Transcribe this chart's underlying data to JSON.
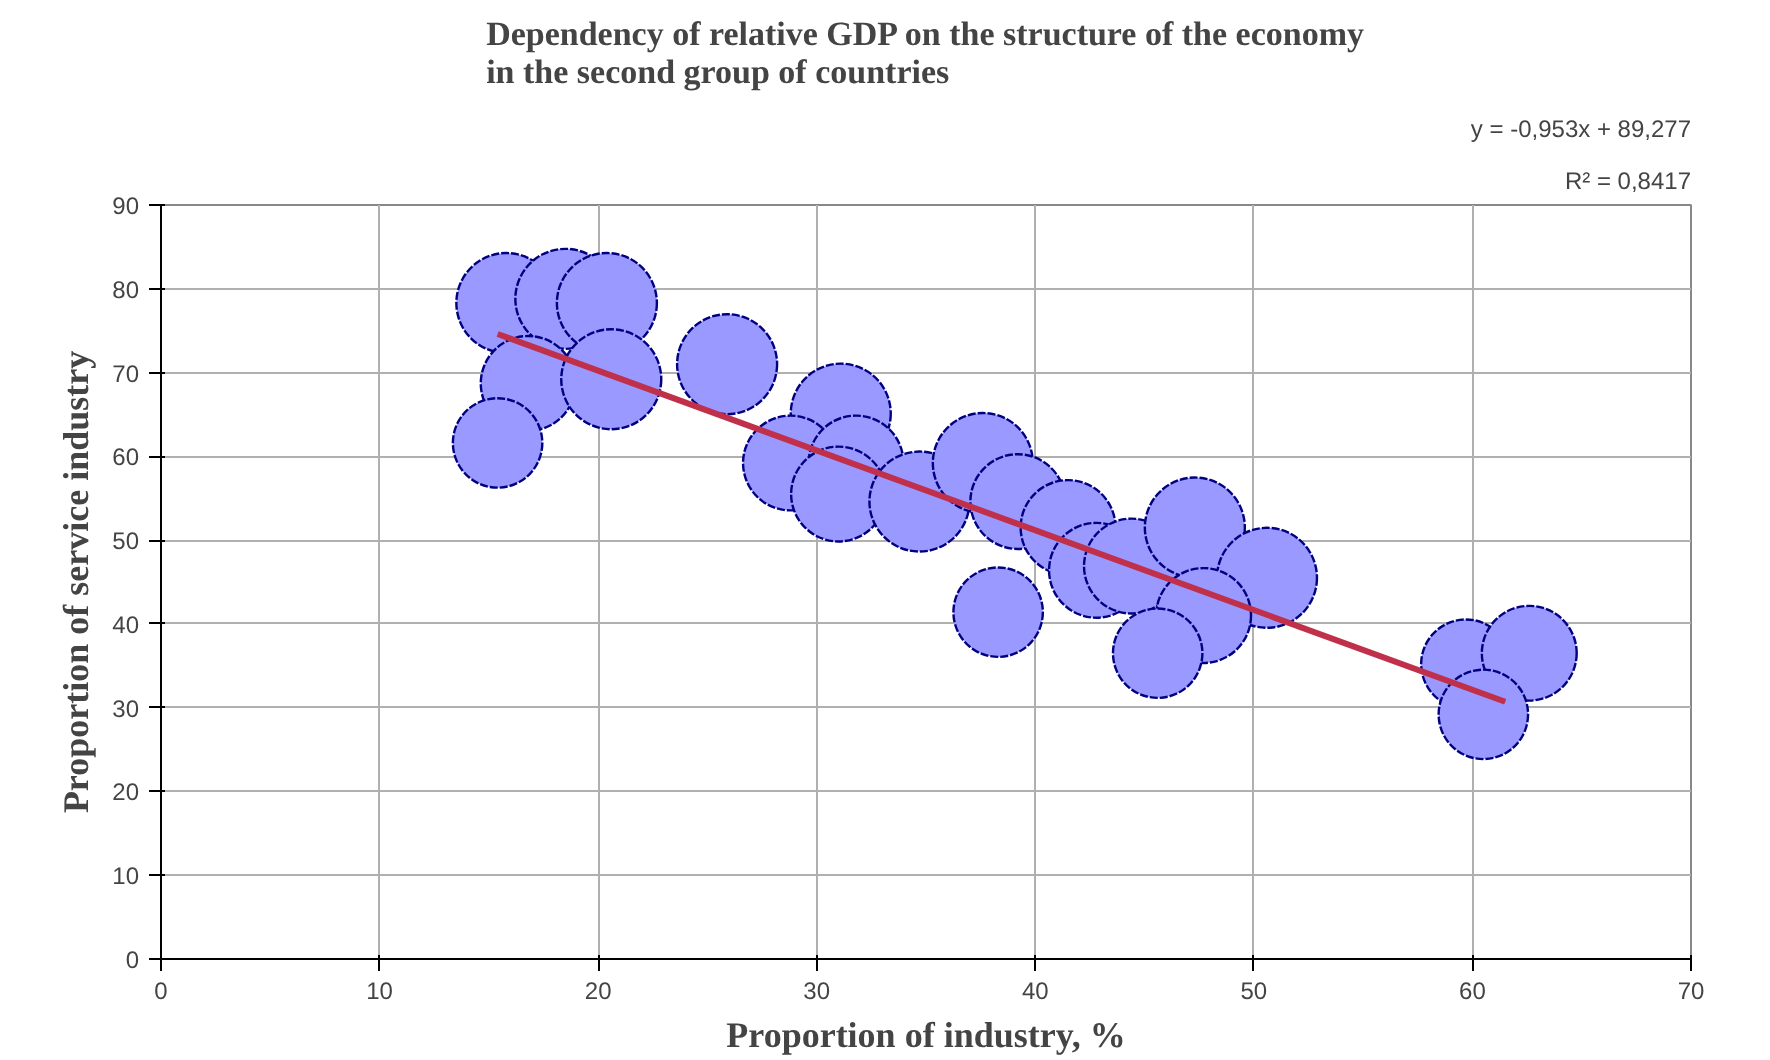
{
  "chart_data": {
    "type": "bubble",
    "title": "Dependency of relative GDP on the structure of the economy\nin the second group of countries",
    "xlabel": "Proportion of industry, %",
    "ylabel": "Proportion of service industry",
    "xlim": [
      0,
      70
    ],
    "xticks": [
      0,
      10,
      20,
      30,
      40,
      50,
      60,
      70
    ],
    "ylim": [
      0,
      90
    ],
    "yticks": [
      0,
      10,
      20,
      30,
      40,
      50,
      60,
      70,
      80,
      90
    ],
    "grid": true,
    "annotations": [
      "y = -0,953x + 89,277",
      "R² = 0,8417"
    ],
    "series": [
      {
        "color": "#9999ff",
        "marker": "circle",
        "x": [
          15.8,
          18.5,
          20.4,
          16.8,
          20.6,
          15.4,
          25.9,
          31.1,
          28.8,
          31.8,
          31.0,
          34.7,
          37.6,
          39.2,
          41.5,
          38.3,
          42.8,
          44.4,
          47.3,
          50.6,
          47.7,
          45.6,
          59.7,
          62.6,
          60.5
        ],
        "values": [
          78.3,
          78.8,
          78.3,
          68.7,
          69.2,
          61.6,
          71,
          65.1,
          59.2,
          59.2,
          55.5,
          54.6,
          59.2,
          54.6,
          51.5,
          41.4,
          46.4,
          46.9,
          51.5,
          45.5,
          41,
          36.5,
          35.2,
          36.5,
          29.2
        ],
        "sizes": [
          1,
          1,
          1,
          0.9,
          1,
          0.8,
          1,
          1,
          0.9,
          0.9,
          0.9,
          1,
          1,
          0.9,
          0.9,
          0.8,
          0.9,
          0.9,
          1,
          1,
          0.9,
          0.8,
          0.8,
          0.9,
          0.8
        ]
      },
      {
        "type": "line",
        "color": "#c0304a",
        "line_style": "solid",
        "x": [
          15.4,
          61.5
        ],
        "values": [
          74.6,
          30.7
        ]
      }
    ]
  }
}
